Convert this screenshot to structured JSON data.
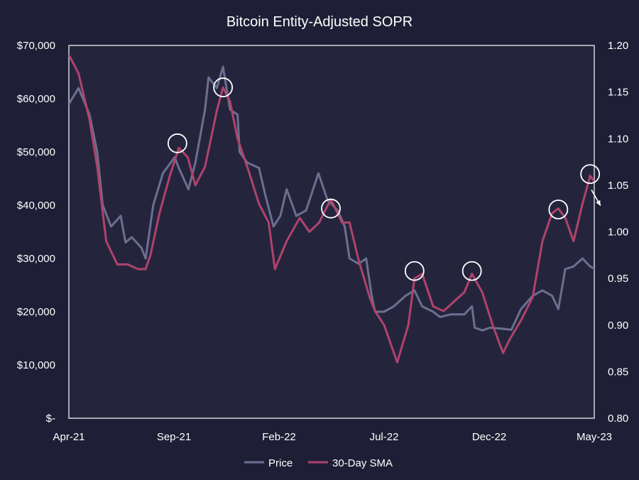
{
  "colors": {
    "background": "#1e1f36",
    "plot_background": "#24253d",
    "plot_border": "#ffffff",
    "price": "#6b7090",
    "sma": "#b0436c",
    "marker": "#ffffff",
    "text": "#ffffff"
  },
  "chart_data": {
    "type": "line",
    "title": "Bitcoin Entity-Adjusted SOPR",
    "xlabel": "",
    "ylabel": "",
    "x_ticks": [
      "Apr-21",
      "Sep-21",
      "Feb-22",
      "Jul-22",
      "Dec-22",
      "May-23"
    ],
    "x_range": [
      "2021-04",
      "2023-05"
    ],
    "y_left": {
      "range": [
        0,
        70000
      ],
      "tick_labels": [
        "$-",
        "$10,000",
        "$20,000",
        "$30,000",
        "$40,000",
        "$50,000",
        "$60,000",
        "$70,000"
      ],
      "tick_values": [
        0,
        10000,
        20000,
        30000,
        40000,
        50000,
        60000,
        70000
      ]
    },
    "y_right": {
      "range": [
        0.8,
        1.2
      ],
      "tick_labels": [
        "0.80",
        "0.85",
        "0.90",
        "0.95",
        "1.00",
        "1.05",
        "1.10",
        "1.15",
        "1.20"
      ],
      "tick_values": [
        0.8,
        0.85,
        0.9,
        0.95,
        1.0,
        1.05,
        1.1,
        1.15,
        1.2
      ]
    },
    "grid": false,
    "legend_position": "bottom-center",
    "series": [
      {
        "name": "Price",
        "axis": "left",
        "x": [
          "2021-04-01",
          "2021-04-15",
          "2021-05-01",
          "2021-05-12",
          "2021-05-20",
          "2021-06-01",
          "2021-06-15",
          "2021-06-22",
          "2021-07-01",
          "2021-07-15",
          "2021-07-21",
          "2021-08-01",
          "2021-08-15",
          "2021-09-01",
          "2021-09-07",
          "2021-09-21",
          "2021-10-01",
          "2021-10-15",
          "2021-10-20",
          "2021-11-01",
          "2021-11-10",
          "2021-11-20",
          "2021-12-01",
          "2021-12-04",
          "2021-12-15",
          "2022-01-01",
          "2022-01-10",
          "2022-01-22",
          "2022-02-01",
          "2022-02-10",
          "2022-02-24",
          "2022-03-10",
          "2022-03-28",
          "2022-04-10",
          "2022-04-25",
          "2022-05-05",
          "2022-05-12",
          "2022-05-25",
          "2022-06-05",
          "2022-06-13",
          "2022-06-18",
          "2022-07-01",
          "2022-07-15",
          "2022-08-01",
          "2022-08-14",
          "2022-08-25",
          "2022-09-10",
          "2022-09-20",
          "2022-10-05",
          "2022-10-25",
          "2022-11-05",
          "2022-11-09",
          "2022-11-20",
          "2022-12-01",
          "2022-12-20",
          "2023-01-01",
          "2023-01-15",
          "2023-02-01",
          "2023-02-15",
          "2023-03-01",
          "2023-03-10",
          "2023-03-20",
          "2023-04-01",
          "2023-04-14",
          "2023-04-25",
          "2023-05-10"
        ],
        "values": [
          59000,
          62000,
          57000,
          50000,
          40000,
          36000,
          38000,
          33000,
          34000,
          32000,
          30000,
          40000,
          46000,
          49000,
          47000,
          43000,
          48000,
          58000,
          64000,
          62000,
          66000,
          58000,
          57000,
          50000,
          48000,
          47000,
          42000,
          36000,
          38000,
          43000,
          38000,
          39000,
          46000,
          41000,
          39000,
          36000,
          30000,
          29000,
          30000,
          23000,
          20000,
          20000,
          21000,
          23000,
          24000,
          21000,
          20000,
          19000,
          19500,
          19500,
          21000,
          17000,
          16500,
          17000,
          16800,
          16600,
          20500,
          23000,
          24000,
          23000,
          20500,
          28000,
          28500,
          30000,
          28500,
          27500
        ]
      },
      {
        "name": "30-Day SMA",
        "axis": "right",
        "x": [
          "2021-04-01",
          "2021-04-15",
          "2021-05-01",
          "2021-05-12",
          "2021-05-25",
          "2021-06-10",
          "2021-06-25",
          "2021-07-10",
          "2021-07-21",
          "2021-07-28",
          "2021-08-10",
          "2021-08-25",
          "2021-09-07",
          "2021-09-20",
          "2021-10-01",
          "2021-10-15",
          "2021-11-01",
          "2021-11-10",
          "2021-11-20",
          "2021-12-01",
          "2021-12-15",
          "2022-01-01",
          "2022-01-15",
          "2022-01-24",
          "2022-02-10",
          "2022-03-01",
          "2022-03-15",
          "2022-03-29",
          "2022-04-15",
          "2022-05-01",
          "2022-05-12",
          "2022-05-25",
          "2022-06-10",
          "2022-06-18",
          "2022-07-01",
          "2022-07-20",
          "2022-08-05",
          "2022-08-14",
          "2022-08-25",
          "2022-09-10",
          "2022-09-25",
          "2022-10-10",
          "2022-10-25",
          "2022-11-05",
          "2022-11-20",
          "2022-12-05",
          "2022-12-20",
          "2022-12-30",
          "2023-01-15",
          "2023-02-01",
          "2023-02-15",
          "2023-03-01",
          "2023-03-10",
          "2023-03-20",
          "2023-04-01",
          "2023-04-14",
          "2023-04-25",
          "2023-05-10"
        ],
        "values": [
          1.19,
          1.17,
          1.12,
          1.07,
          0.99,
          0.965,
          0.965,
          0.96,
          0.96,
          0.975,
          1.02,
          1.06,
          1.09,
          1.08,
          1.05,
          1.07,
          1.13,
          1.155,
          1.14,
          1.1,
          1.07,
          1.03,
          1.01,
          0.96,
          0.99,
          1.015,
          1.0,
          1.01,
          1.035,
          1.01,
          1.01,
          0.97,
          0.93,
          0.915,
          0.9,
          0.86,
          0.9,
          0.95,
          0.955,
          0.92,
          0.915,
          0.925,
          0.935,
          0.955,
          0.935,
          0.9,
          0.87,
          0.885,
          0.905,
          0.93,
          0.99,
          1.02,
          1.025,
          1.015,
          0.99,
          1.03,
          1.06,
          1.045
        ]
      }
    ],
    "annotations": {
      "circle_markers": [
        {
          "x": "2021-09-05",
          "y": 1.095
        },
        {
          "x": "2021-11-10",
          "y": 1.155
        },
        {
          "x": "2022-04-15",
          "y": 1.025
        },
        {
          "x": "2022-08-14",
          "y": 0.958
        },
        {
          "x": "2022-11-05",
          "y": 0.958
        },
        {
          "x": "2023-03-10",
          "y": 1.024
        },
        {
          "x": "2023-04-25",
          "y": 1.062
        }
      ],
      "arrow": {
        "from": {
          "x": "2023-04-27",
          "y": 1.045
        },
        "to": {
          "x": "2023-05-10",
          "y": 1.028
        }
      }
    }
  },
  "legend": [
    {
      "name": "Price"
    },
    {
      "name": "30-Day SMA"
    }
  ]
}
